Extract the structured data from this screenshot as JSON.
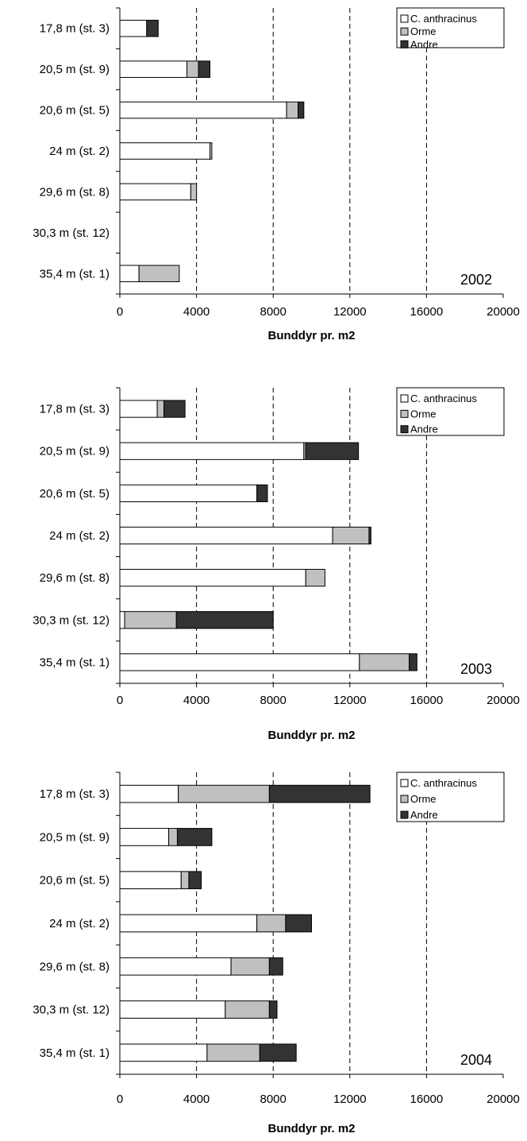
{
  "colors": {
    "c_anthracinus": "#ffffff",
    "orme": "#c0c0c0",
    "andre": "#333333",
    "axis": "#000000",
    "grid": "#000000"
  },
  "chart_data": [
    {
      "type": "bar",
      "orientation": "horizontal",
      "stacked": true,
      "year_label": "2002",
      "xlabel": "Bunddyr pr. m2",
      "xlim": [
        0,
        20000
      ],
      "xticks": [
        "0",
        "4000",
        "8000",
        "12000",
        "16000",
        "20000"
      ],
      "grid": "vertical dashed",
      "legend_position": "top-right",
      "categories": [
        "17,8 m (st. 3)",
        "20,5 m (st. 9)",
        "20,6 m (st. 5)",
        "24 m (st. 2)",
        "29,6 m (st. 8)",
        "30,3 m (st. 12)",
        "35,4 m (st. 1)"
      ],
      "series": [
        {
          "name": "C. anthracinus",
          "values": [
            1400,
            3500,
            8700,
            4700,
            3700,
            0,
            1000
          ]
        },
        {
          "name": "Orme",
          "values": [
            0,
            600,
            600,
            100,
            300,
            0,
            2100
          ]
        },
        {
          "name": "Andre",
          "values": [
            600,
            600,
            300,
            0,
            0,
            0,
            0
          ]
        }
      ]
    },
    {
      "type": "bar",
      "orientation": "horizontal",
      "stacked": true,
      "year_label": "2003",
      "xlabel": "Bunddyr pr. m2",
      "xlim": [
        0,
        20000
      ],
      "xticks": [
        "0",
        "4000",
        "8000",
        "12000",
        "16000",
        "20000"
      ],
      "grid": "vertical dashed",
      "legend_position": "top-right",
      "categories": [
        "17,8 m (st. 3)",
        "20,5 m (st. 9)",
        "20,6 m (st. 5)",
        "24 m (st. 2)",
        "29,6 m (st. 8)",
        "30,3 m (st. 12)",
        "35,4 m (st. 1)"
      ],
      "series": [
        {
          "name": "C. anthracinus",
          "values": [
            1950,
            9600,
            7150,
            11100,
            9700,
            250,
            12500
          ]
        },
        {
          "name": "Orme",
          "values": [
            350,
            100,
            0,
            1900,
            1000,
            2700,
            2600
          ]
        },
        {
          "name": "Andre",
          "values": [
            1100,
            2750,
            550,
            100,
            0,
            5050,
            400
          ]
        }
      ]
    },
    {
      "type": "bar",
      "orientation": "horizontal",
      "stacked": true,
      "year_label": "2004",
      "xlabel": "Bunddyr pr. m2",
      "xlim": [
        0,
        20000
      ],
      "xticks": [
        "0",
        "4000",
        "8000",
        "12000",
        "16000",
        "20000"
      ],
      "grid": "vertical dashed",
      "legend_position": "top-right",
      "categories": [
        "17,8 m (st. 3)",
        "20,5 m (st. 9)",
        "20,6 m (st. 5)",
        "24 m (st. 2)",
        "29,6 m (st. 8)",
        "30,3 m (st. 12)",
        "35,4 m (st. 1)"
      ],
      "series": [
        {
          "name": "C. anthracinus",
          "values": [
            3050,
            2550,
            3200,
            7150,
            5800,
            5500,
            4550
          ]
        },
        {
          "name": "Orme",
          "values": [
            4750,
            450,
            400,
            1500,
            2000,
            2300,
            2750
          ]
        },
        {
          "name": "Andre",
          "values": [
            5250,
            1800,
            650,
            1350,
            700,
            400,
            1900
          ]
        }
      ]
    }
  ]
}
